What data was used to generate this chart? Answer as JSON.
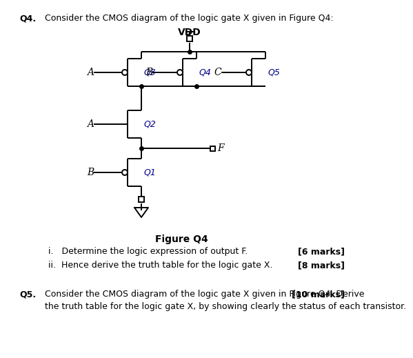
{
  "bg_color": "#ffffff",
  "line_color": "#000000",
  "transistor_label_color": "#00008B",
  "text_color": "#000000",
  "vdd_label": "VDD",
  "f_label": "F",
  "q4_header": "Q4.",
  "q4_text": "Consider the CMOS diagram of the logic gate X given in Figure Q4:",
  "figure_label": "Figure Q4",
  "sub_i_text": "i.   Determine the logic expression of output F.",
  "sub_i_marks": "[6 marks]",
  "sub_ii_text": "ii.  Hence derive the truth table for the logic gate X.",
  "sub_ii_marks": "[8 marks]",
  "q5_header": "Q5.",
  "q5_line1": "Consider the CMOS diagram of the logic gate X given in Figure Q4. Derive",
  "q5_marks": "[10 marks]",
  "q5_line2": "the truth table for the logic gate X, by showing clearly the status of each transistor."
}
